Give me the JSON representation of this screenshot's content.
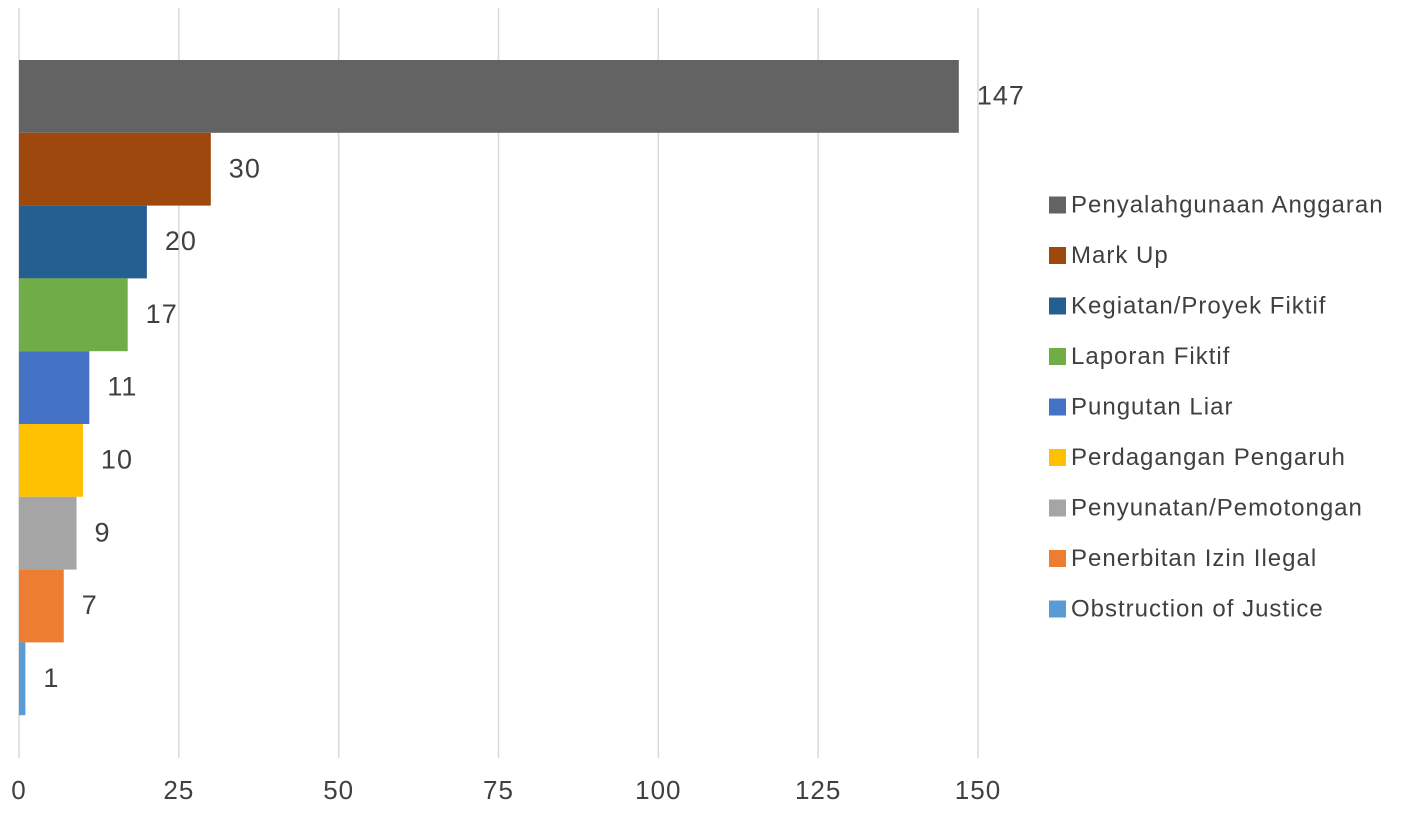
{
  "chart_data": {
    "type": "bar",
    "orientation": "horizontal",
    "categories": [
      "Penyalahgunaan Anggaran",
      "Mark Up",
      "Kegiatan/Proyek Fiktif",
      "Laporan Fiktif",
      "Pungutan Liar",
      "Perdagangan Pengaruh",
      "Penyunatan/Pemotongan",
      "Penerbitan Izin Ilegal",
      "Obstruction of Justice"
    ],
    "values": [
      147,
      30,
      20,
      17,
      11,
      10,
      9,
      7,
      1
    ],
    "data_labels": [
      "147",
      "30",
      "20",
      "17",
      "11",
      "10",
      "9",
      "7",
      "1"
    ],
    "colors": [
      "#636363",
      "#9e480e",
      "#255e91",
      "#70ad47",
      "#4472c4",
      "#ffc000",
      "#a5a5a5",
      "#ed7d31",
      "#5b9bd5"
    ],
    "x_ticks": [
      "0",
      "25",
      "50",
      "75",
      "100",
      "125",
      "150"
    ],
    "xlim": [
      0,
      150
    ],
    "grid": true,
    "legend_position": "right",
    "title": "",
    "xlabel": "",
    "ylabel": ""
  }
}
